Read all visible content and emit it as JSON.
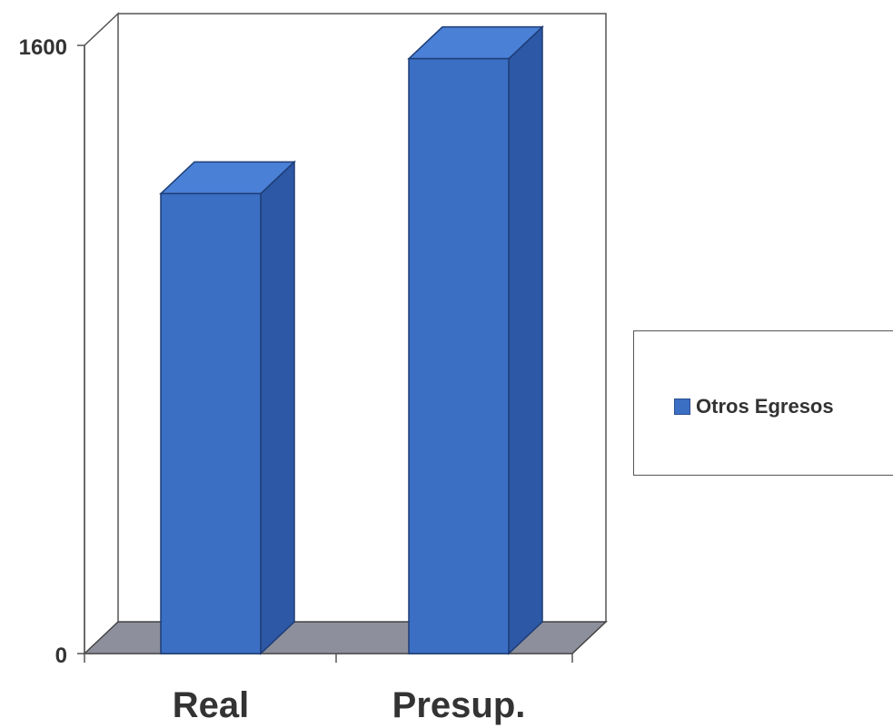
{
  "chart_data": {
    "type": "bar",
    "categories": [
      "Real",
      "Presup."
    ],
    "series": [
      {
        "name": "Otros Egresos",
        "values": [
          1210,
          1565
        ]
      }
    ],
    "title": "",
    "xlabel": "",
    "ylabel": "",
    "ylim": [
      0,
      1600
    ],
    "y_tick_labels": [
      "0",
      "1600"
    ],
    "legend": "right",
    "grid": false,
    "style": "3d-column"
  },
  "colors": {
    "bar_front": "#3b6fc4",
    "bar_side": "#2d58a6",
    "bar_top": "#4a80d6",
    "floor": "#8d8f9c"
  },
  "legend": {
    "label": "Otros Egresos"
  }
}
